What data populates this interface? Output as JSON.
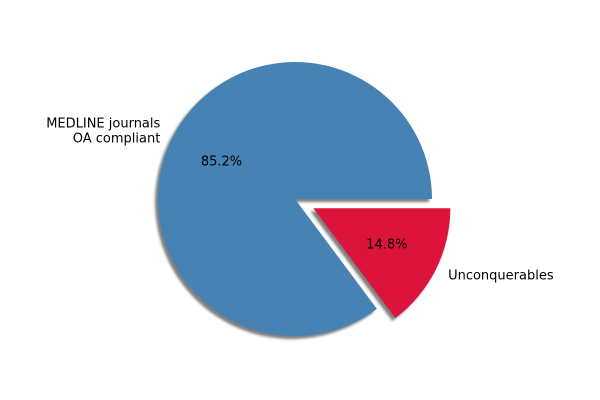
{
  "chart_data": {
    "type": "pie",
    "slices": [
      {
        "label_lines": [
          "MEDLINE journals",
          "OA compliant"
        ],
        "value": 85.2,
        "pct_label": "85.2%",
        "color": "#4682b4",
        "explode": false
      },
      {
        "label_lines": [
          "Unconquerables"
        ],
        "value": 14.8,
        "pct_label": "14.8%",
        "color": "#dc143c",
        "explode": true
      }
    ],
    "start_angle_deg": 0,
    "direction": "counterclockwise",
    "shadow": true,
    "legend": "none"
  }
}
